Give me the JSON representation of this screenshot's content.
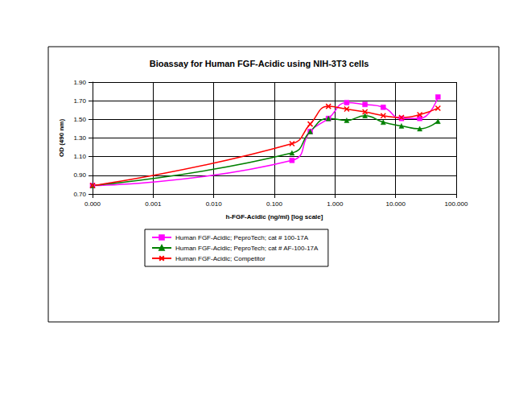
{
  "chart_data": {
    "type": "line",
    "title": "Bioassay for Human FGF-Acidic using NIH-3T3 cells",
    "x_label": "h-FGF-Acidic (ng/ml) [log scale]",
    "y_label": "OD (490 nm)",
    "x": [
      0.0001,
      0.195,
      0.39,
      0.78,
      1.56,
      3.125,
      6.25,
      12.5,
      25,
      50
    ],
    "series": [
      {
        "name": "Human FGF-Acidic; PeproTech; cat # 100-17A",
        "color": "#ff00ff",
        "marker": "square",
        "values": [
          0.79,
          1.06,
          1.37,
          1.51,
          1.68,
          1.66,
          1.63,
          1.51,
          1.51,
          1.74
        ]
      },
      {
        "name": "Human FGF-Acidic; PeproTech; cat # AF-100-17A",
        "color": "#008000",
        "marker": "triangle",
        "values": [
          0.79,
          1.14,
          1.37,
          1.51,
          1.49,
          1.54,
          1.47,
          1.43,
          1.4,
          1.48
        ]
      },
      {
        "name": "Human FGF-Acidic; Competitor",
        "color": "#ff0000",
        "marker": "x",
        "values": [
          0.79,
          1.24,
          1.45,
          1.64,
          1.61,
          1.58,
          1.54,
          1.52,
          1.55,
          1.62
        ]
      }
    ],
    "xlim": [
      0.0001,
      100
    ],
    "xticks": [
      {
        "value": 0.0001,
        "label": "0.000"
      },
      {
        "value": 0.001,
        "label": "0.001"
      },
      {
        "value": 0.01,
        "label": "0.010"
      },
      {
        "value": 0.1,
        "label": "0.100"
      },
      {
        "value": 1,
        "label": "1.000"
      },
      {
        "value": 10,
        "label": "10.000"
      },
      {
        "value": 100,
        "label": "100.000"
      }
    ],
    "ylim": [
      0.7,
      1.9
    ],
    "yticks": [
      {
        "value": 0.7,
        "label": "0.70"
      },
      {
        "value": 0.9,
        "label": "0.90"
      },
      {
        "value": 1.1,
        "label": "1.10"
      },
      {
        "value": 1.3,
        "label": "1.30"
      },
      {
        "value": 1.5,
        "label": "1.50"
      },
      {
        "value": 1.7,
        "label": "1.70"
      },
      {
        "value": 1.9,
        "label": "1.90"
      }
    ],
    "log": "x",
    "grid": true,
    "legend": "bottom"
  }
}
